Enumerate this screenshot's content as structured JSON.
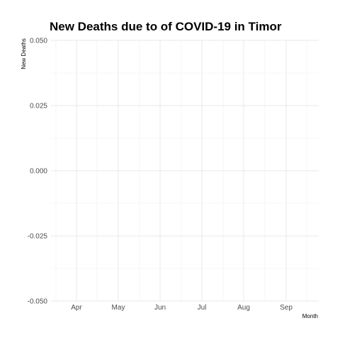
{
  "chart_data": {
    "type": "line",
    "title": "New Deaths due to of COVID-19 in Timor",
    "xlabel": "Month",
    "ylabel": "New Deaths",
    "x_tick_labels": [
      "Apr",
      "May",
      "Jun",
      "Jul",
      "Aug",
      "Sep"
    ],
    "y_tick_labels": [
      "0.050",
      "0.025",
      "0.000",
      "-0.025",
      "-0.050"
    ],
    "y_ticks": [
      0.05,
      0.025,
      0,
      -0.025,
      -0.05
    ],
    "ylim": [
      -0.05,
      0.05
    ],
    "series": [],
    "grid": true,
    "legend": "none",
    "colors": {
      "grid": "#e3e3e3",
      "grid_minor": "#f0f0f0",
      "tick_text": "#4d4d4d",
      "text": "#000000"
    }
  }
}
